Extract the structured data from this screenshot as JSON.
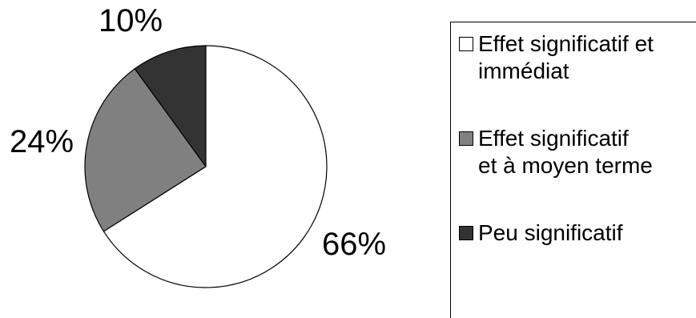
{
  "chart_data": {
    "type": "pie",
    "slices": [
      {
        "label": "Effet significatif et\nimmédiat",
        "value": 66,
        "display": "66%",
        "color": "#ffffff"
      },
      {
        "label": " Effet significatif\net à moyen terme",
        "value": 24,
        "display": "24%",
        "color": "#808080"
      },
      {
        "label": "Peu significatif",
        "value": 10,
        "display": "10%",
        "color": "#333333"
      }
    ],
    "start": "12 o'clock",
    "direction": "clockwise",
    "legend_position": "right"
  }
}
